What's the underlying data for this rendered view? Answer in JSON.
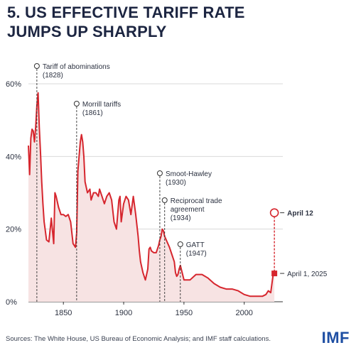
{
  "header": {
    "title_line1": "5. US EFFECTIVE TARIFF RATE",
    "title_line2": "JUMPS UP SHARPLY"
  },
  "footer": {
    "source": "Sources: The White House, US Bureau of Economic Analysis; and IMF staff calculations.",
    "logo": "IMF"
  },
  "colors": {
    "line": "#d6262e",
    "area": "#f7e3e3",
    "grid": "#d9d9d9",
    "text": "#1f2a44",
    "logo": "#1f4fa3"
  },
  "chart_data": {
    "type": "area",
    "title": "5. US EFFECTIVE TARIFF RATE JUMPS UP SHARPLY",
    "xlim": [
      1821,
      2032
    ],
    "ylim": [
      0,
      60
    ],
    "x_ticks": [
      1850,
      1900,
      1950,
      2000
    ],
    "y_ticks": [
      0,
      20,
      40,
      60
    ],
    "y_tick_labels": [
      "0%",
      "20%",
      "40%",
      "60%"
    ],
    "grid": "horizontal",
    "series": [
      {
        "x": [
          1821,
          1822,
          1823,
          1824,
          1825,
          1826,
          1827,
          1828,
          1829,
          1830,
          1831,
          1832,
          1833,
          1834,
          1836,
          1838,
          1840,
          1842,
          1843,
          1844,
          1846,
          1848,
          1850,
          1852,
          1854,
          1856,
          1858,
          1860,
          1861,
          1862,
          1864,
          1865,
          1866,
          1867,
          1868,
          1870,
          1872,
          1873,
          1875,
          1877,
          1879,
          1880,
          1882,
          1884,
          1886,
          1888,
          1890,
          1892,
          1893,
          1894,
          1896,
          1897,
          1898,
          1900,
          1902,
          1904,
          1906,
          1908,
          1910,
          1912,
          1913,
          1914,
          1916,
          1917,
          1918,
          1920,
          1921,
          1922,
          1923,
          1925,
          1927,
          1929,
          1930,
          1931,
          1932,
          1933,
          1934,
          1936,
          1938,
          1940,
          1942,
          1943,
          1944,
          1945,
          1946,
          1947,
          1950,
          1955,
          1960,
          1965,
          1970,
          1975,
          1980,
          1985,
          1990,
          1995,
          2000,
          2005,
          2010,
          2015,
          2018,
          2020,
          2022,
          2024,
          2025
        ],
        "y": [
          43,
          35,
          45,
          47.5,
          47,
          44,
          48,
          54,
          57.5,
          48,
          41,
          33,
          27,
          22,
          17,
          16.5,
          23,
          16,
          30,
          29,
          26,
          24,
          24,
          23.5,
          24,
          22,
          16,
          15,
          19,
          36,
          44,
          46,
          44,
          40,
          33,
          30,
          31,
          28,
          30,
          30,
          29,
          31,
          29,
          27,
          29,
          30,
          28,
          22,
          21,
          20,
          28,
          29,
          22,
          27,
          29,
          28,
          24,
          29,
          24,
          18,
          14,
          11,
          8,
          7,
          6,
          9,
          14.5,
          15,
          14,
          13.5,
          13.5,
          15.5,
          17,
          18,
          20,
          19.5,
          18,
          16.5,
          15,
          13,
          11,
          8,
          7,
          7.5,
          9,
          10,
          6,
          6,
          7.5,
          7.5,
          6.5,
          5,
          4,
          3.5,
          3.5,
          3,
          2,
          1.5,
          1.5,
          1.5,
          2,
          3,
          2.5,
          7.5,
          7.8
        ]
      }
    ],
    "annotations": [
      {
        "year": 1828,
        "label": "Tariff of abominations",
        "sub": "(1828)"
      },
      {
        "year": 1861,
        "label": "Morrill tariffs",
        "sub": "(1861)"
      },
      {
        "year": 1930,
        "label": "Smoot-Hawley",
        "sub": "(1930)"
      },
      {
        "year": 1934,
        "label": "Reciprocal trade",
        "label2": "agreement",
        "sub": "(1934)"
      },
      {
        "year": 1947,
        "label": "GATT",
        "sub": "(1947)"
      }
    ],
    "points": [
      {
        "label": "April 12",
        "x": 2025,
        "y": 24.5,
        "marker": "open-circle"
      },
      {
        "label": "April 1, 2025",
        "x": 2025,
        "y": 7.8,
        "marker": "square"
      }
    ]
  }
}
